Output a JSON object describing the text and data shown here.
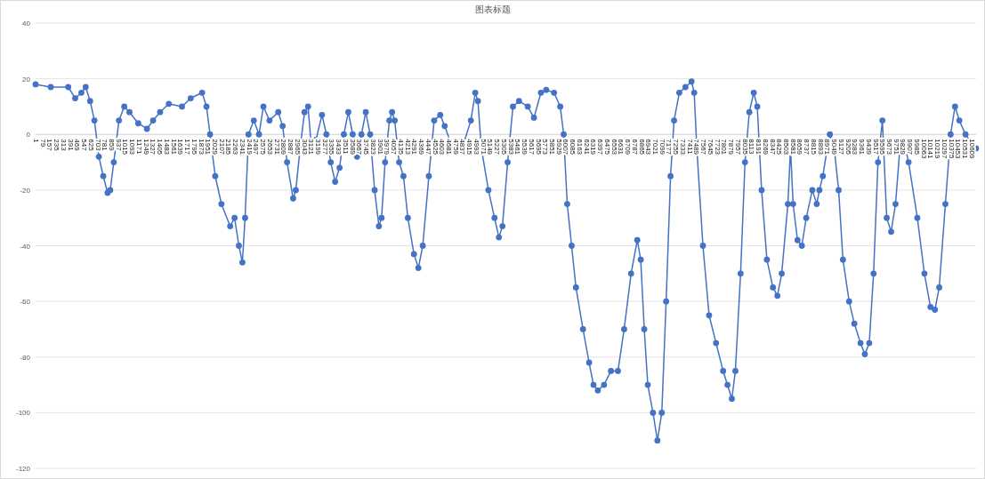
{
  "chart_data": {
    "type": "line",
    "title": "图表标题",
    "x": [
      1,
      173,
      371,
      450,
      520,
      569,
      619,
      668,
      718,
      768,
      817,
      847,
      887,
      946,
      1006,
      1065,
      1164,
      1263,
      1333,
      1412,
      1511,
      1660,
      1759,
      1888,
      1938,
      1978,
      2037,
      2107,
      2206,
      2256,
      2305,
      2345,
      2375,
      2414,
      2474,
      2533,
      2583,
      2652,
      2751,
      2801,
      2851,
      2920,
      2950,
      2999,
      3049,
      3089,
      3128,
      3178,
      3247,
      3297,
      3346,
      3396,
      3446,
      3495,
      3545,
      3595,
      3644,
      3694,
      3743,
      3793,
      3843,
      3892,
      3922,
      3962,
      4011,
      4041,
      4071,
      4121,
      4170,
      4220,
      4289,
      4339,
      4389,
      4458,
      4518,
      4587,
      4637,
      4706,
      4786,
      4855,
      4934,
      4984,
      5014,
      5053,
      5133,
      5202,
      5252,
      5292,
      5351,
      5411,
      5480,
      5579,
      5649,
      5728,
      5788,
      5877,
      5947,
      5986,
      6026,
      6076,
      6125,
      6205,
      6274,
      6324,
      6373,
      6443,
      6522,
      6601,
      6671,
      6750,
      6820,
      6859,
      6899,
      6939,
      6998,
      7048,
      7098,
      7147,
      7197,
      7237,
      7296,
      7366,
      7435,
      7465,
      7495,
      7564,
      7634,
      7713,
      7793,
      7842,
      7892,
      7932,
      7991,
      8041,
      8090,
      8140,
      8180,
      8229,
      8289,
      8358,
      8408,
      8457,
      8527,
      8557,
      8586,
      8636,
      8685,
      8735,
      8804,
      8854,
      8884,
      8923,
      8973,
      9003,
      9052,
      9102,
      9151,
      9221,
      9280,
      9350,
      9399,
      9449,
      9498,
      9548,
      9598,
      9647,
      9697,
      9747,
      9796,
      9846,
      9895,
      9994,
      10074,
      10143,
      10193,
      10242,
      10312,
      10371,
      10421,
      10470,
      10540,
      10609,
      10659
    ],
    "series": [
      {
        "color": "#4472c4",
        "values": [
          18,
          17,
          17,
          13,
          15,
          17,
          12,
          5,
          -8,
          -15,
          -21,
          -20,
          -10,
          5,
          10,
          8,
          4,
          2,
          5,
          8,
          11,
          10,
          13,
          15,
          10,
          0,
          -15,
          -25,
          -33,
          -30,
          -40,
          -46,
          -30,
          0,
          5,
          0,
          10,
          5,
          8,
          3,
          -10,
          -23,
          -20,
          -5,
          8,
          10,
          -5,
          -2,
          7,
          0,
          -10,
          -17,
          -12,
          0,
          8,
          0,
          -8,
          0,
          8,
          0,
          -20,
          -33,
          -30,
          -10,
          5,
          8,
          5,
          -10,
          -15,
          -30,
          -43,
          -48,
          -40,
          -15,
          5,
          7,
          3,
          -3,
          -5,
          -3,
          5,
          15,
          12,
          -5,
          -20,
          -30,
          -37,
          -33,
          -10,
          10,
          12,
          10,
          6,
          15,
          16,
          15,
          10,
          0,
          -25,
          -40,
          -55,
          -70,
          -82,
          -90,
          -92,
          -90,
          -85,
          -85,
          -70,
          -50,
          -38,
          -45,
          -70,
          -90,
          -100,
          -110,
          -100,
          -60,
          -15,
          5,
          15,
          17,
          19,
          15,
          -5,
          -40,
          -65,
          -75,
          -85,
          -90,
          -95,
          -85,
          -50,
          -10,
          8,
          15,
          10,
          -20,
          -45,
          -55,
          -58,
          -50,
          -25,
          -5,
          -25,
          -38,
          -40,
          -30,
          -20,
          -25,
          -20,
          -15,
          -5,
          0,
          -5,
          -20,
          -45,
          -60,
          -68,
          -75,
          -79,
          -75,
          -50,
          -10,
          5,
          -30,
          -35,
          -25,
          -5,
          -3,
          -10,
          -30,
          -50,
          -62,
          -63,
          -55,
          -25,
          0,
          10,
          5,
          0,
          -3,
          -5
        ]
      }
    ],
    "xlim": [
      1,
      10660
    ],
    "xticks": [
      1,
      79,
      157,
      235,
      313,
      391,
      469,
      547,
      625,
      703,
      781,
      859,
      937,
      1015,
      1093,
      1171,
      1249,
      1327,
      1405,
      1483,
      1561,
      1639,
      1717,
      1795,
      1873,
      1951,
      2029,
      2107,
      2185,
      2263,
      2341,
      2419,
      2497,
      2575,
      2653,
      2731,
      2809,
      2887,
      2965,
      3043,
      3121,
      3199,
      3277,
      3355,
      3433,
      3511,
      3589,
      3667,
      3745,
      3823,
      3901,
      3979,
      4057,
      4135,
      4213,
      4291,
      4369,
      4447,
      4525,
      4603,
      4681,
      4759,
      4837,
      4915,
      4993,
      5071,
      5149,
      5227,
      5305,
      5383,
      5461,
      5539,
      5617,
      5695,
      5773,
      5851,
      5929,
      6007,
      6085,
      6163,
      6241,
      6319,
      6397,
      6475,
      6553,
      6631,
      6709,
      6787,
      6865,
      6943,
      7021,
      7099,
      7177,
      7255,
      7333,
      7411,
      7489,
      7567,
      7645,
      7723,
      7801,
      7879,
      7957,
      8035,
      8113,
      8191,
      8269,
      8347,
      8425,
      8503,
      8581,
      8659,
      8737,
      8815,
      8893,
      8971,
      9049,
      9127,
      9205,
      9283,
      9361,
      9439,
      9517,
      9595,
      9673,
      9751,
      9829,
      9907,
      9985,
      10063,
      10141,
      10219,
      10297,
      10375,
      10453,
      10531,
      10609
    ],
    "ylim": [
      -120,
      40
    ],
    "yticks": [
      -120,
      -100,
      -80,
      -60,
      -40,
      -20,
      0,
      20,
      40
    ],
    "grid": "y",
    "marker": "circle",
    "line_style": "solid"
  }
}
